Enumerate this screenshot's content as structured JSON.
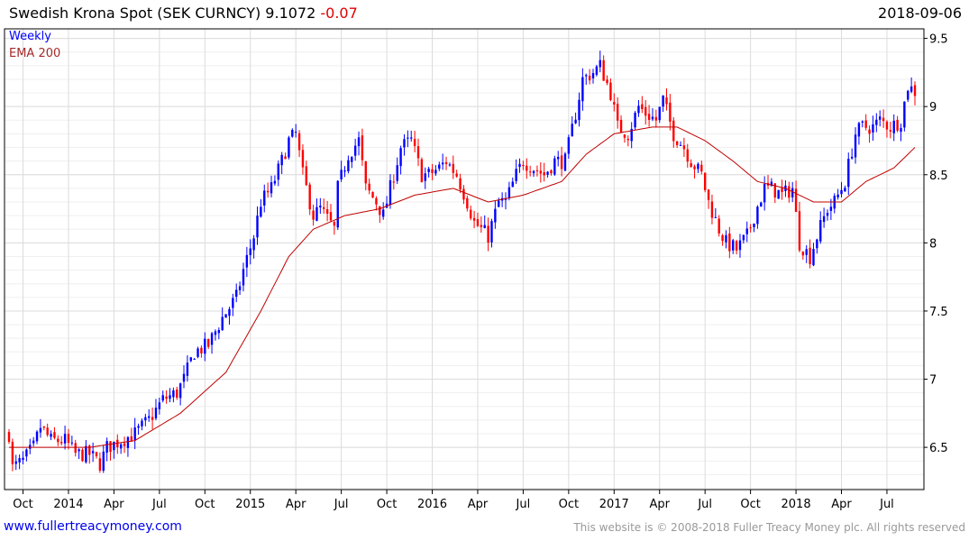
{
  "header": {
    "title": "Swedish Krona Spot (SEK CURNCY) 9.1072",
    "change": "-0.07",
    "date": "2018-09-06"
  },
  "legend": {
    "series": "Weekly",
    "ema": "EMA 200"
  },
  "footer": {
    "link": "www.fullertreacymoney.com",
    "copyright": "This website is © 2008-2018 Fuller Treacy Money plc. All rights reserved"
  },
  "colors": {
    "up": "#0000ff",
    "down": "#ff0000",
    "ema": "#c00000",
    "grid": "#dcdcdc"
  },
  "chart_data": {
    "type": "candlestick",
    "title": "Swedish Krona Spot (SEK CURNCY)",
    "interval": "weekly",
    "start_date": "2013-09-13",
    "end_date": "2018-09-06",
    "weeks": 260,
    "ylim": [
      6.19,
      9.57
    ],
    "y_ticks": [
      "6.5",
      "7",
      "7.5",
      "8",
      "8.5",
      "9",
      "9.5"
    ],
    "x_ticks": [
      {
        "label": "Oct",
        "week": 4
      },
      {
        "label": "2014",
        "week": 17
      },
      {
        "label": "Apr",
        "week": 30
      },
      {
        "label": "Jul",
        "week": 43
      },
      {
        "label": "Oct",
        "week": 56
      },
      {
        "label": "2015",
        "week": 69
      },
      {
        "label": "Apr",
        "week": 82
      },
      {
        "label": "Jul",
        "week": 95
      },
      {
        "label": "Oct",
        "week": 108
      },
      {
        "label": "2016",
        "week": 121
      },
      {
        "label": "Apr",
        "week": 134
      },
      {
        "label": "Jul",
        "week": 147
      },
      {
        "label": "Oct",
        "week": 160
      },
      {
        "label": "2017",
        "week": 173
      },
      {
        "label": "Apr",
        "week": 186
      },
      {
        "label": "Jul",
        "week": 199
      },
      {
        "label": "Oct",
        "week": 212
      },
      {
        "label": "2018",
        "week": 225
      },
      {
        "label": "Apr",
        "week": 238
      },
      {
        "label": "Jul",
        "week": 251
      }
    ],
    "close_keypoints": [
      [
        0,
        6.6
      ],
      [
        1,
        6.35
      ],
      [
        4,
        6.4
      ],
      [
        7,
        6.5
      ],
      [
        9,
        6.65
      ],
      [
        12,
        6.55
      ],
      [
        16,
        6.55
      ],
      [
        19,
        6.45
      ],
      [
        23,
        6.45
      ],
      [
        26,
        6.38
      ],
      [
        28,
        6.5
      ],
      [
        32,
        6.55
      ],
      [
        36,
        6.6
      ],
      [
        40,
        6.7
      ],
      [
        44,
        6.85
      ],
      [
        48,
        6.9
      ],
      [
        50,
        7.0
      ],
      [
        53,
        7.2
      ],
      [
        57,
        7.25
      ],
      [
        61,
        7.45
      ],
      [
        65,
        7.6
      ],
      [
        67,
        7.8
      ],
      [
        70,
        8.05
      ],
      [
        72,
        8.3
      ],
      [
        75,
        8.4
      ],
      [
        78,
        8.6
      ],
      [
        80,
        8.75
      ],
      [
        82,
        8.8
      ],
      [
        84,
        8.5
      ],
      [
        87,
        8.2
      ],
      [
        89,
        8.25
      ],
      [
        93,
        8.1
      ],
      [
        94,
        8.4
      ],
      [
        97,
        8.65
      ],
      [
        100,
        8.75
      ],
      [
        102,
        8.4
      ],
      [
        105,
        8.3
      ],
      [
        107,
        8.2
      ],
      [
        110,
        8.5
      ],
      [
        112,
        8.7
      ],
      [
        115,
        8.75
      ],
      [
        118,
        8.5
      ],
      [
        120,
        8.5
      ],
      [
        123,
        8.55
      ],
      [
        125,
        8.6
      ],
      [
        128,
        8.5
      ],
      [
        131,
        8.3
      ],
      [
        133,
        8.15
      ],
      [
        137,
        8.05
      ],
      [
        140,
        8.3
      ],
      [
        142,
        8.3
      ],
      [
        145,
        8.5
      ],
      [
        147,
        8.6
      ],
      [
        150,
        8.55
      ],
      [
        153,
        8.5
      ],
      [
        156,
        8.6
      ],
      [
        159,
        8.6
      ],
      [
        162,
        8.95
      ],
      [
        164,
        9.2
      ],
      [
        167,
        9.25
      ],
      [
        169,
        9.3
      ],
      [
        172,
        9.1
      ],
      [
        174,
        8.85
      ],
      [
        177,
        8.8
      ],
      [
        180,
        9.0
      ],
      [
        182,
        8.95
      ],
      [
        185,
        8.9
      ],
      [
        187,
        9.05
      ],
      [
        190,
        8.8
      ],
      [
        193,
        8.7
      ],
      [
        195,
        8.6
      ],
      [
        198,
        8.5
      ],
      [
        200,
        8.3
      ],
      [
        203,
        8.1
      ],
      [
        205,
        8.0
      ],
      [
        208,
        7.95
      ],
      [
        211,
        8.05
      ],
      [
        213,
        8.2
      ],
      [
        216,
        8.4
      ],
      [
        218,
        8.4
      ],
      [
        221,
        8.35
      ],
      [
        224,
        8.4
      ],
      [
        226,
        8.0
      ],
      [
        229,
        7.9
      ],
      [
        231,
        8.05
      ],
      [
        234,
        8.25
      ],
      [
        236,
        8.3
      ],
      [
        239,
        8.45
      ],
      [
        242,
        8.8
      ],
      [
        244,
        8.85
      ],
      [
        247,
        8.85
      ],
      [
        249,
        8.9
      ],
      [
        252,
        8.85
      ],
      [
        255,
        8.9
      ],
      [
        257,
        9.15
      ],
      [
        259,
        9.11
      ]
    ],
    "ema200_keypoints": [
      [
        0,
        6.5
      ],
      [
        23,
        6.5
      ],
      [
        36,
        6.55
      ],
      [
        49,
        6.75
      ],
      [
        62,
        7.05
      ],
      [
        72,
        7.5
      ],
      [
        80,
        7.9
      ],
      [
        87,
        8.1
      ],
      [
        96,
        8.2
      ],
      [
        106,
        8.25
      ],
      [
        116,
        8.35
      ],
      [
        127,
        8.4
      ],
      [
        137,
        8.3
      ],
      [
        147,
        8.35
      ],
      [
        158,
        8.45
      ],
      [
        165,
        8.65
      ],
      [
        173,
        8.8
      ],
      [
        184,
        8.85
      ],
      [
        191,
        8.85
      ],
      [
        199,
        8.75
      ],
      [
        207,
        8.6
      ],
      [
        214,
        8.45
      ],
      [
        222,
        8.4
      ],
      [
        230,
        8.3
      ],
      [
        238,
        8.3
      ],
      [
        245,
        8.45
      ],
      [
        253,
        8.55
      ],
      [
        259,
        8.7
      ]
    ]
  }
}
